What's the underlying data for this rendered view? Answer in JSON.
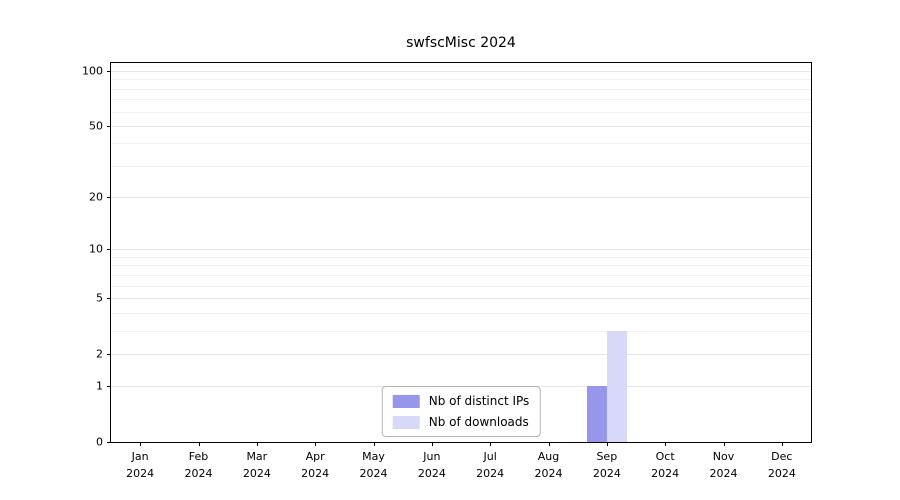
{
  "chart_data": {
    "type": "bar",
    "title": "swfscMisc 2024",
    "year": "2024",
    "categories": [
      "Jan",
      "Feb",
      "Mar",
      "Apr",
      "May",
      "Jun",
      "Jul",
      "Aug",
      "Sep",
      "Oct",
      "Nov",
      "Dec"
    ],
    "series": [
      {
        "name": "Nb of distinct IPs",
        "color": "#9697eb",
        "values": [
          0,
          0,
          0,
          0,
          0,
          0,
          0,
          0,
          1,
          0,
          0,
          0
        ]
      },
      {
        "name": "Nb of downloads",
        "color": "#d8d8f8",
        "values": [
          0,
          0,
          0,
          0,
          0,
          0,
          0,
          0,
          3,
          0,
          0,
          0
        ]
      }
    ],
    "yticks": [
      0,
      1,
      2,
      5,
      10,
      20,
      50,
      100
    ],
    "minor_yticks": [
      3,
      4,
      6,
      7,
      8,
      9,
      30,
      40,
      60,
      70,
      80,
      90
    ],
    "scale": "log1p",
    "ylim": [
      0,
      111
    ],
    "grid": true,
    "legend_position": "bottom-center"
  }
}
